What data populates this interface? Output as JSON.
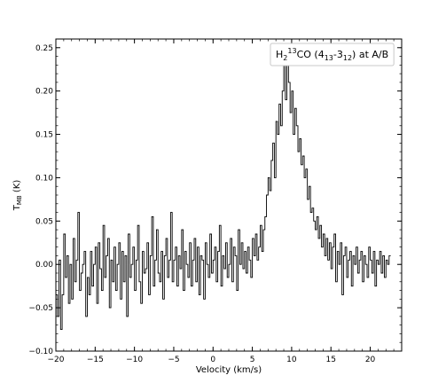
{
  "chart_data": {
    "type": "line",
    "step": true,
    "xlabel": "Velocity (km/s)",
    "ylabel_main": "T",
    "ylabel_sub": "MB",
    "ylabel_tail": " (K)",
    "xlim": [
      -20,
      24
    ],
    "ylim": [
      -0.1,
      0.26
    ],
    "xticks": [
      -20,
      -15,
      -10,
      -5,
      0,
      5,
      10,
      15,
      20
    ],
    "xtick_labels": [
      "−20",
      "−15",
      "−10",
      "−5",
      "0",
      "5",
      "10",
      "15",
      "20"
    ],
    "yticks": [
      -0.1,
      -0.05,
      0.0,
      0.05,
      0.1,
      0.15,
      0.2,
      0.25
    ],
    "ytick_labels": [
      "−0.10",
      "−0.05",
      "0.00",
      "0.05",
      "0.10",
      "0.15",
      "0.20",
      "0.25"
    ],
    "x_minor_step": 1,
    "y_minor_step": 0.01,
    "grid": false,
    "legend": {
      "placement": "top-right",
      "parts": [
        {
          "t": "H",
          "s": "n"
        },
        {
          "t": "2",
          "s": "sub"
        },
        {
          "t": "13",
          "s": "sup"
        },
        {
          "t": "CO (4",
          "s": "n"
        },
        {
          "t": "13",
          "s": "sub"
        },
        {
          "t": "-3",
          "s": "n"
        },
        {
          "t": "12",
          "s": "sub"
        },
        {
          "t": ") at A/B",
          "s": "n"
        }
      ]
    },
    "series": [
      {
        "color": "#000000",
        "x_start": -20.0,
        "x_step": 0.2,
        "values": [
          -0.035,
          -0.06,
          0.005,
          -0.075,
          -0.035,
          0.035,
          -0.015,
          0.01,
          -0.045,
          0.0,
          -0.04,
          0.03,
          -0.02,
          0.005,
          0.06,
          -0.03,
          -0.01,
          0.0,
          0.015,
          -0.06,
          -0.015,
          -0.035,
          0.015,
          -0.025,
          0.0,
          0.02,
          -0.045,
          0.025,
          -0.005,
          -0.03,
          0.045,
          -0.015,
          0.01,
          0.03,
          -0.05,
          0.005,
          -0.02,
          0.02,
          -0.03,
          0.0,
          0.025,
          -0.04,
          0.015,
          -0.02,
          0.01,
          -0.06,
          0.035,
          -0.015,
          0.0,
          0.02,
          -0.03,
          0.005,
          0.045,
          -0.02,
          -0.045,
          0.015,
          -0.01,
          -0.005,
          0.025,
          -0.035,
          0.01,
          0.055,
          -0.025,
          0.005,
          0.04,
          -0.01,
          -0.02,
          0.015,
          -0.04,
          0.01,
          0.03,
          -0.015,
          0.005,
          0.06,
          -0.02,
          0.005,
          0.02,
          -0.025,
          0.01,
          -0.005,
          0.04,
          -0.03,
          0.015,
          0.0,
          -0.015,
          0.025,
          -0.025,
          0.005,
          0.03,
          -0.02,
          0.02,
          -0.035,
          0.01,
          0.005,
          -0.04,
          0.025,
          0.0,
          -0.015,
          0.035,
          -0.01,
          0.005,
          0.02,
          -0.02,
          0.015,
          0.045,
          -0.025,
          0.01,
          -0.005,
          0.025,
          -0.015,
          0.0,
          0.03,
          -0.02,
          0.02,
          0.01,
          -0.03,
          0.04,
          0.0,
          0.025,
          -0.005,
          0.015,
          -0.01,
          0.02,
          0.005,
          -0.015,
          0.03,
          0.01,
          0.035,
          0.005,
          0.02,
          0.045,
          0.015,
          0.04,
          0.055,
          0.08,
          0.1,
          0.085,
          0.12,
          0.14,
          0.1,
          0.165,
          0.15,
          0.185,
          0.16,
          0.2,
          0.23,
          0.19,
          0.245,
          0.21,
          0.175,
          0.2,
          0.15,
          0.18,
          0.16,
          0.13,
          0.145,
          0.115,
          0.125,
          0.1,
          0.11,
          0.075,
          0.09,
          0.06,
          0.065,
          0.05,
          0.04,
          0.055,
          0.03,
          0.045,
          0.02,
          0.035,
          0.01,
          0.03,
          0.005,
          0.025,
          -0.005,
          0.02,
          0.035,
          -0.02,
          0.015,
          0.0,
          0.025,
          -0.035,
          0.01,
          0.02,
          -0.015,
          0.005,
          0.015,
          -0.025,
          0.01,
          0.0,
          0.02,
          -0.01,
          0.005,
          0.015,
          -0.02,
          0.01,
          0.0,
          -0.015,
          0.02,
          0.005,
          -0.01,
          0.015,
          -0.025,
          0.005,
          0.0,
          0.015,
          -0.01,
          0.01,
          -0.015,
          0.005,
          0.0,
          0.01
        ]
      }
    ]
  }
}
